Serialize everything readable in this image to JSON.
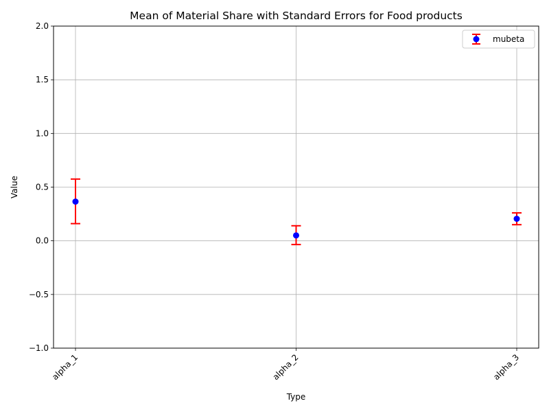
{
  "chart_data": {
    "type": "scatter",
    "title": "Mean of Material Share with Standard Errors for Food products",
    "xlabel": "Type",
    "ylabel": "Value",
    "categories": [
      "alpha_1",
      "alpha_2",
      "alpha_3"
    ],
    "ylim": [
      -1.0,
      2.0
    ],
    "yticks": [
      -1.0,
      -0.5,
      0.0,
      0.5,
      1.0,
      1.5,
      2.0
    ],
    "ytick_labels": [
      "−1.0",
      "−0.5",
      "0.0",
      "0.5",
      "1.0",
      "1.5",
      "2.0"
    ],
    "grid": true,
    "legend_position": "top-right",
    "series": [
      {
        "name": "mubeta",
        "values": [
          0.365,
          0.05,
          0.205
        ],
        "lower": [
          0.16,
          -0.035,
          0.15
        ],
        "upper": [
          0.575,
          0.14,
          0.26
        ],
        "marker_color": "#0000ff",
        "errorbar_color": "#ff0000"
      }
    ]
  }
}
